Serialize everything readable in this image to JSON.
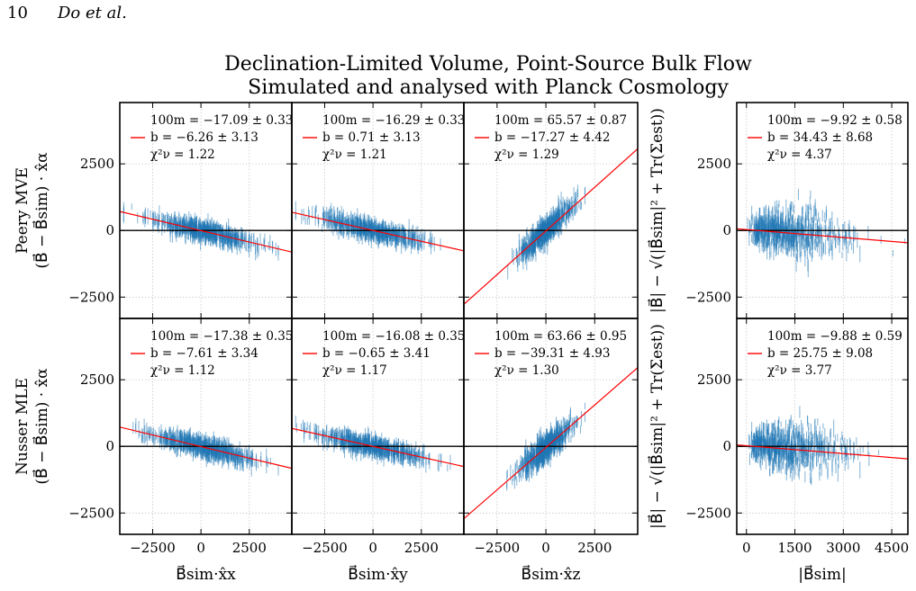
{
  "header": {
    "page_number": "10",
    "authors": "Do et al."
  },
  "figure": {
    "title_lines": [
      "Declination-Limited Volume, Point-Source Bulk Flow",
      "Simulated and analysed with Planck Cosmology"
    ],
    "row_labels": [
      "Peery MVE",
      "Nusser MLE"
    ],
    "row_ylabel": "(B⃗ − B⃗sim) · x̂α",
    "right_ylabel": "|B⃗| − √(|B⃗sim|² + Tr(Σest))",
    "x_labels": [
      "B⃗sim·x̂x",
      "B⃗sim·x̂y",
      "B⃗sim·x̂z",
      "|B⃗sim|"
    ]
  },
  "colors": {
    "points": "#1f77b4",
    "fit_line": "#ff0000",
    "zero_line": "#000000",
    "grid": "#c8c8c8"
  },
  "chart_data": [
    {
      "type": "scatter",
      "row": "Peery MVE",
      "col": 0,
      "xlabel": "B⃗sim·x̂x",
      "xlim": [
        -4200,
        4700
      ],
      "ylim": [
        -3300,
        4800
      ],
      "xticks": [
        -2500,
        0,
        2500
      ],
      "xtick_labels": [
        "−2500",
        "0",
        "2500"
      ],
      "yticks": [
        -2500,
        0,
        2500
      ],
      "ytick_labels": [
        "−2500",
        "0",
        "2500"
      ],
      "grid": true,
      "legend": "top",
      "annotation": [
        "100m = −17.09 ± 0.33",
        "b = −6.26 ± 3.13",
        "χ²ν = 1.22"
      ],
      "fit": {
        "slope": -0.1709,
        "intercept": -6.26
      }
    },
    {
      "type": "scatter",
      "row": "Peery MVE",
      "col": 1,
      "xlabel": "B⃗sim·x̂y",
      "xlim": [
        -4200,
        4700
      ],
      "ylim": [
        -3300,
        4800
      ],
      "xticks": [
        -2500,
        0,
        2500
      ],
      "xtick_labels": [
        "−2500",
        "0",
        "2500"
      ],
      "grid": true,
      "legend": "top",
      "annotation": [
        "100m = −16.29 ± 0.33",
        "b = 0.71 ± 3.13",
        "χ²ν = 1.21"
      ],
      "fit": {
        "slope": -0.1629,
        "intercept": 0.71
      }
    },
    {
      "type": "scatter",
      "row": "Peery MVE",
      "col": 2,
      "xlabel": "B⃗sim·x̂z",
      "xlim": [
        -4200,
        4700
      ],
      "ylim": [
        -3300,
        4800
      ],
      "xticks": [
        -2500,
        0,
        2500
      ],
      "xtick_labels": [
        "−2500",
        "0",
        "2500"
      ],
      "grid": true,
      "legend": "top",
      "annotation": [
        "100m = 65.57 ± 0.87",
        "b = −17.27 ± 4.42",
        "χ²ν = 1.29"
      ],
      "fit": {
        "slope": 0.6557,
        "intercept": -17.27
      }
    },
    {
      "type": "scatter",
      "row": "Peery MVE",
      "col": 3,
      "xlabel": "|B⃗sim|",
      "xlim": [
        -300,
        5000
      ],
      "ylim": [
        -3300,
        4800
      ],
      "xticks": [
        0,
        1500,
        3000,
        4500
      ],
      "xtick_labels": [
        "0",
        "1500",
        "3000",
        "4500"
      ],
      "yticks": [
        -2500,
        0,
        2500
      ],
      "ytick_labels": [
        "−2500",
        "0",
        "2500"
      ],
      "grid": true,
      "legend": "top",
      "annotation": [
        "100m = −9.92 ± 0.58",
        "b = 34.43 ± 8.68",
        "χ²ν = 4.37"
      ],
      "fit": {
        "slope": -0.0992,
        "intercept": 34.43
      }
    },
    {
      "type": "scatter",
      "row": "Nusser MLE",
      "col": 0,
      "xlabel": "B⃗sim·x̂x",
      "xlim": [
        -4200,
        4700
      ],
      "ylim": [
        -3300,
        4800
      ],
      "xticks": [
        -2500,
        0,
        2500
      ],
      "xtick_labels": [
        "−2500",
        "0",
        "2500"
      ],
      "yticks": [
        -2500,
        0,
        2500
      ],
      "ytick_labels": [
        "−2500",
        "0",
        "2500"
      ],
      "grid": true,
      "legend": "top",
      "annotation": [
        "100m = −17.38 ± 0.35",
        "b = −7.61 ± 3.34",
        "χ²ν = 1.12"
      ],
      "fit": {
        "slope": -0.1738,
        "intercept": -7.61
      }
    },
    {
      "type": "scatter",
      "row": "Nusser MLE",
      "col": 1,
      "xlabel": "B⃗sim·x̂y",
      "xlim": [
        -4200,
        4700
      ],
      "ylim": [
        -3300,
        4800
      ],
      "xticks": [
        -2500,
        0,
        2500
      ],
      "xtick_labels": [
        "−2500",
        "0",
        "2500"
      ],
      "grid": true,
      "legend": "top",
      "annotation": [
        "100m = −16.08 ± 0.35",
        "b = −0.65 ± 3.41",
        "χ²ν = 1.17"
      ],
      "fit": {
        "slope": -0.1608,
        "intercept": -0.65
      }
    },
    {
      "type": "scatter",
      "row": "Nusser MLE",
      "col": 2,
      "xlabel": "B⃗sim·x̂z",
      "xlim": [
        -4200,
        4700
      ],
      "ylim": [
        -3300,
        4800
      ],
      "xticks": [
        -2500,
        0,
        2500
      ],
      "xtick_labels": [
        "−2500",
        "0",
        "2500"
      ],
      "grid": true,
      "legend": "top",
      "annotation": [
        "100m = 63.66 ± 0.95",
        "b = −39.31 ± 4.93",
        "χ²ν = 1.30"
      ],
      "fit": {
        "slope": 0.6366,
        "intercept": -39.31
      }
    },
    {
      "type": "scatter",
      "row": "Nusser MLE",
      "col": 3,
      "xlabel": "|B⃗sim|",
      "xlim": [
        -300,
        5000
      ],
      "ylim": [
        -3300,
        4800
      ],
      "xticks": [
        0,
        1500,
        3000,
        4500
      ],
      "xtick_labels": [
        "0",
        "1500",
        "3000",
        "4500"
      ],
      "yticks": [
        -2500,
        0,
        2500
      ],
      "ytick_labels": [
        "−2500",
        "0",
        "2500"
      ],
      "grid": true,
      "legend": "top",
      "annotation": [
        "100m = −9.88 ± 0.59",
        "b = 25.75 ± 9.08",
        "χ²ν = 3.77"
      ],
      "fit": {
        "slope": -0.0988,
        "intercept": 25.75
      }
    }
  ]
}
